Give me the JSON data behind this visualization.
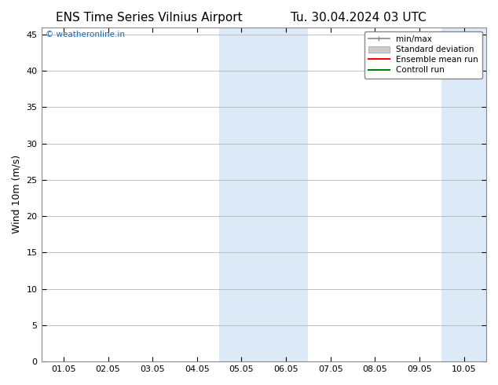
{
  "title_left": "ENS Time Series Vilnius Airport",
  "title_right": "Tu. 30.04.2024 03 UTC",
  "ylabel": "Wind 10m (m/s)",
  "xlim": [
    -0.5,
    9.5
  ],
  "ylim": [
    0,
    46
  ],
  "yticks": [
    0,
    5,
    10,
    15,
    20,
    25,
    30,
    35,
    40,
    45
  ],
  "xtick_labels": [
    "01.05",
    "02.05",
    "03.05",
    "04.05",
    "05.05",
    "06.05",
    "07.05",
    "08.05",
    "09.05",
    "10.05"
  ],
  "xtick_positions": [
    0,
    1,
    2,
    3,
    4,
    5,
    6,
    7,
    8,
    9
  ],
  "shaded_bands": [
    {
      "x_start": 3.5,
      "x_end": 4.5,
      "color": "#dce9f7"
    },
    {
      "x_start": 4.5,
      "x_end": 5.5,
      "color": "#dce9f7"
    },
    {
      "x_start": 8.5,
      "x_end": 9.5,
      "color": "#dce9f7"
    }
  ],
  "watermark_text": "© weatheronline.in",
  "watermark_color": "#1a6bb5",
  "legend_entries": [
    {
      "label": "min/max",
      "color": "#888888",
      "style": "minmax"
    },
    {
      "label": "Standard deviation",
      "color": "#cccccc",
      "style": "fill"
    },
    {
      "label": "Ensemble mean run",
      "color": "#ff0000",
      "style": "line"
    },
    {
      "label": "Controll run",
      "color": "#008000",
      "style": "line"
    }
  ],
  "background_color": "#ffffff",
  "grid_color": "#aaaaaa",
  "title_fontsize": 11,
  "axis_fontsize": 9,
  "tick_fontsize": 8
}
